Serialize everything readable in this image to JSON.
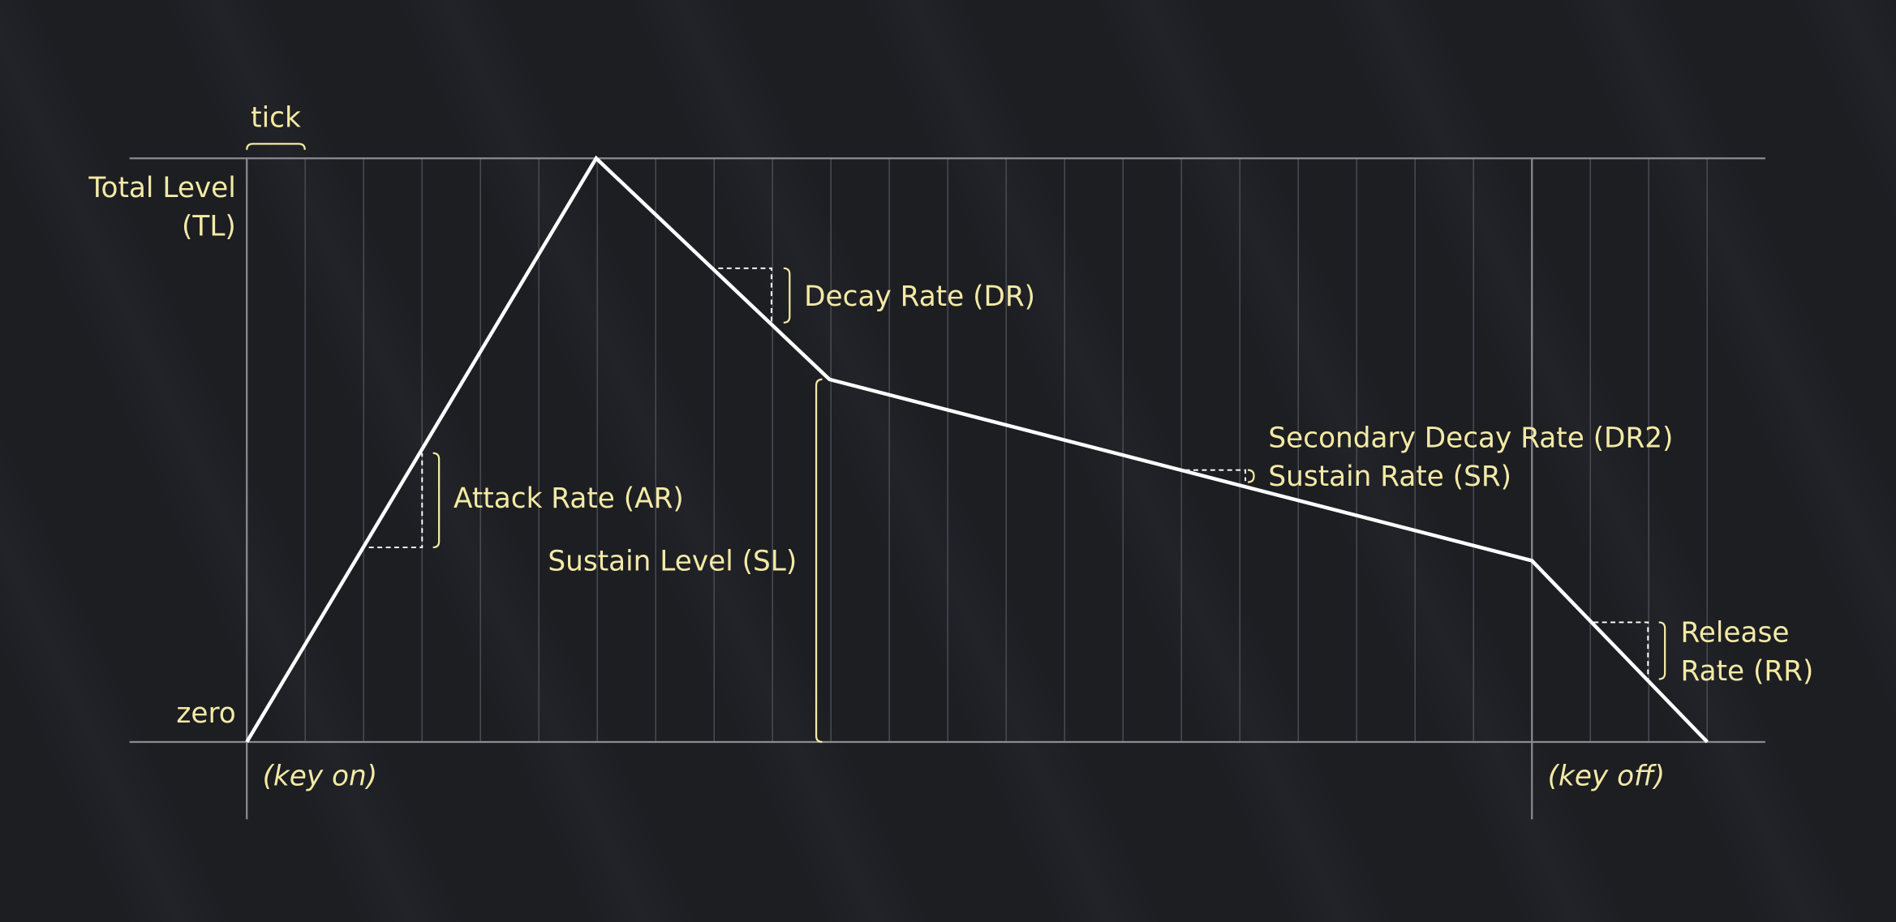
{
  "labels": {
    "tick": "tick",
    "total_level_1": "Total Level",
    "total_level_2": "(TL)",
    "zero": "zero",
    "key_on": "(key on)",
    "key_off": "(key off)",
    "attack_rate": "Attack Rate (AR)",
    "decay_rate": "Decay Rate (DR)",
    "sustain_level": "Sustain Level (SL)",
    "secondary_decay_rate": "Secondary Decay Rate (DR2)",
    "sustain_rate": "Sustain Rate (SR)",
    "release_rate_1": "Release",
    "release_rate_2": "Rate (RR)"
  },
  "colors": {
    "label": "#f3eaa6",
    "envelope": "#ffffff",
    "background": "#1e1f24"
  }
}
